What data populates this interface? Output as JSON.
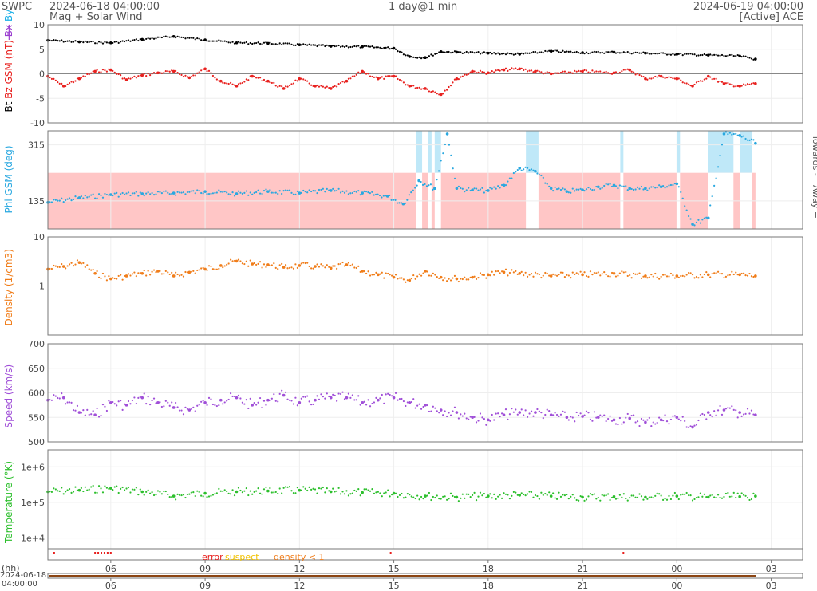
{
  "header": {
    "org": "SWPC",
    "start_time": "2024-06-18 04:00:00",
    "subtitle": "Mag + Solar Wind",
    "span": "1 day@1 min",
    "end_time": "2024-06-19 04:00:00",
    "source": "[Active] ACE"
  },
  "colors": {
    "bt": "#000000",
    "bz": "#e8201e",
    "bx": "#9b3fd0",
    "by": "#1ab0e8",
    "phi": "#29a8e0",
    "phi_away": "#ffc6c6",
    "phi_towards": "#bfe8f8",
    "density": "#f07d1a",
    "speed": "#a04fd8",
    "temperature": "#2cbf2c",
    "error": "#e8201e",
    "suspect": "#f2c200",
    "density_lt1": "#f07d1a"
  },
  "footer": {
    "hh_label": "(hh)",
    "date_line1": "2024-06-18",
    "date_line2": "04:00:00",
    "legend_error": "error",
    "legend_suspect": "suspect",
    "legend_density": "density < 1"
  },
  "chart_data": {
    "type": "line",
    "x_axis": {
      "unit": "hour (UTC)",
      "range_hours": [
        4,
        28
      ],
      "tick_labels": [
        "06",
        "09",
        "12",
        "15",
        "18",
        "21",
        "00",
        "03"
      ],
      "tick_hours": [
        6,
        9,
        12,
        15,
        18,
        21,
        24,
        27
      ],
      "data_end_hour": 26.5
    },
    "panels": [
      {
        "id": "mag",
        "ylabel_parts": [
          "Bt",
          "Bz GSM (nT)",
          "Bx",
          "By"
        ],
        "ylim": [
          -10,
          10
        ],
        "yticks": [
          -10,
          -5,
          0,
          5,
          10
        ],
        "series": [
          {
            "name": "Bt",
            "x": [
              4.0,
              5.0,
              6.0,
              7.0,
              8.0,
              9.0,
              10.0,
              11.0,
              12.0,
              13.0,
              14.0,
              15.0,
              15.5,
              16.0,
              16.5,
              17.0,
              18.0,
              19.0,
              20.0,
              21.0,
              22.0,
              23.0,
              24.0,
              25.0,
              26.0,
              26.5
            ],
            "y": [
              6.8,
              6.5,
              6.3,
              7.0,
              7.6,
              6.9,
              6.3,
              6.2,
              5.9,
              5.6,
              5.5,
              5.2,
              3.5,
              3.3,
              4.5,
              4.4,
              4.2,
              4.0,
              4.6,
              4.3,
              4.4,
              4.2,
              4.0,
              3.8,
              3.6,
              3.0
            ]
          },
          {
            "name": "Bz",
            "x": [
              4.0,
              4.5,
              5.0,
              5.5,
              6.0,
              6.5,
              7.0,
              7.5,
              8.0,
              8.5,
              9.0,
              9.5,
              10.0,
              10.5,
              11.0,
              11.5,
              12.0,
              12.5,
              13.0,
              13.5,
              14.0,
              14.5,
              15.0,
              15.5,
              16.0,
              16.5,
              17.0,
              17.5,
              18.0,
              18.5,
              19.0,
              19.5,
              20.0,
              21.0,
              22.0,
              22.5,
              23.0,
              23.5,
              24.0,
              24.5,
              25.0,
              25.5,
              26.0,
              26.5
            ],
            "y": [
              -0.5,
              -2.5,
              -1.0,
              0.5,
              0.8,
              -1.2,
              -0.3,
              0.2,
              0.5,
              -0.8,
              1.0,
              -1.5,
              -2.5,
              -0.5,
              -1.5,
              -3.0,
              -1.0,
              -2.5,
              -3.0,
              -1.5,
              0.5,
              -1.0,
              -0.5,
              -2.5,
              -3.0,
              -4.2,
              -1.0,
              0.5,
              0.2,
              0.8,
              1.0,
              0.5,
              0.0,
              0.5,
              0.2,
              0.8,
              -1.0,
              -0.5,
              -1.0,
              -2.5,
              -0.5,
              -2.0,
              -2.5,
              -2.0
            ]
          }
        ]
      },
      {
        "id": "phi",
        "ylabel": "Phi GSM (deg)",
        "right_labels": [
          "Towards -",
          "Away +"
        ],
        "ylim": [
          45,
          360
        ],
        "yticks": [
          135,
          315
        ],
        "series": [
          {
            "name": "Phi",
            "x": [
              4.0,
              5.0,
              6.0,
              7.0,
              8.0,
              9.0,
              10.0,
              11.0,
              12.0,
              13.0,
              14.0,
              14.8,
              15.3,
              15.8,
              16.3,
              16.7,
              17.0,
              17.5,
              18.0,
              18.5,
              19.0,
              19.5,
              20.0,
              20.5,
              21.0,
              21.5,
              22.0,
              22.5,
              23.0,
              23.5,
              24.0,
              24.5,
              25.0,
              25.5,
              26.0,
              26.5
            ],
            "y": [
              130,
              145,
              155,
              158,
              160,
              165,
              158,
              165,
              160,
              168,
              160,
              150,
              125,
              200,
              175,
              350,
              175,
              170,
              168,
              185,
              240,
              230,
              175,
              165,
              170,
              180,
              185,
              175,
              175,
              180,
              190,
              60,
              80,
              350,
              345,
              320
            ]
          }
        ],
        "towards_bands_hours": [
          [
            15.7,
            15.9
          ],
          [
            16.1,
            16.2
          ],
          [
            16.3,
            16.5
          ],
          [
            19.2,
            19.6
          ],
          [
            22.2,
            22.3
          ],
          [
            24.0,
            24.1
          ],
          [
            25.0,
            25.8
          ],
          [
            26.0,
            26.4
          ]
        ]
      },
      {
        "id": "density",
        "ylabel": "Density (1/cm3)",
        "scale": "log",
        "ylim": [
          0.1,
          10
        ],
        "ytick_labels": [
          "1",
          "10"
        ],
        "series": [
          {
            "name": "Density",
            "x": [
              4.0,
              4.5,
              5.0,
              5.5,
              6.0,
              6.5,
              7.0,
              7.5,
              8.0,
              8.5,
              9.0,
              9.5,
              10.0,
              10.5,
              11.0,
              11.5,
              12.0,
              12.5,
              13.0,
              13.5,
              14.0,
              14.5,
              15.0,
              15.5,
              16.0,
              16.5,
              17.0,
              17.5,
              18.0,
              18.5,
              19.0,
              20.0,
              21.0,
              22.0,
              23.0,
              24.0,
              25.0,
              26.0,
              26.5
            ],
            "y": [
              2.2,
              2.5,
              3.0,
              1.8,
              1.4,
              1.6,
              1.8,
              2.0,
              1.6,
              1.9,
              2.2,
              2.6,
              3.2,
              2.8,
              2.7,
              2.4,
              2.6,
              2.5,
              2.3,
              2.7,
              2.0,
              1.7,
              1.5,
              1.3,
              2.0,
              1.5,
              1.4,
              1.5,
              1.7,
              1.9,
              1.8,
              1.6,
              1.7,
              1.8,
              1.6,
              1.6,
              1.7,
              1.7,
              1.6
            ]
          }
        ]
      },
      {
        "id": "speed",
        "ylabel": "Speed (km/s)",
        "ylim": [
          500,
          700
        ],
        "yticks": [
          500,
          550,
          600,
          650,
          700
        ],
        "series": [
          {
            "name": "Speed",
            "x": [
              4.0,
              4.5,
              5.0,
              5.5,
              6.0,
              6.5,
              7.0,
              7.5,
              8.0,
              8.5,
              9.0,
              9.5,
              10.0,
              10.5,
              11.0,
              11.5,
              12.0,
              12.5,
              13.0,
              13.5,
              14.0,
              14.5,
              15.0,
              15.5,
              16.0,
              16.5,
              17.0,
              17.5,
              18.0,
              18.5,
              19.0,
              19.5,
              20.0,
              20.5,
              21.0,
              21.5,
              22.0,
              22.5,
              23.0,
              23.5,
              24.0,
              24.5,
              25.0,
              25.5,
              26.0,
              26.5
            ],
            "y": [
              585,
              590,
              560,
              555,
              580,
              575,
              590,
              580,
              570,
              565,
              580,
              585,
              590,
              575,
              585,
              595,
              580,
              585,
              590,
              590,
              580,
              585,
              590,
              580,
              575,
              565,
              560,
              550,
              545,
              555,
              560,
              560,
              555,
              550,
              552,
              550,
              545,
              548,
              540,
              545,
              550,
              530,
              560,
              565,
              560,
              555
            ]
          }
        ]
      },
      {
        "id": "temperature",
        "ylabel": "Temperature (°K)",
        "scale": "log",
        "ylim": [
          5000,
          3000000
        ],
        "ytick_labels": [
          "1e+4",
          "1e+5",
          "1e+6"
        ],
        "series": [
          {
            "name": "Temperature",
            "x": [
              4.0,
              5.0,
              6.0,
              7.0,
              8.0,
              9.0,
              10.0,
              11.0,
              12.0,
              13.0,
              14.0,
              15.0,
              16.0,
              17.0,
              18.0,
              19.0,
              20.0,
              21.0,
              22.0,
              23.0,
              24.0,
              25.0,
              26.0,
              26.5
            ],
            "y": [
              200000,
              220000,
              250000,
              200000,
              150000,
              180000,
              200000,
              210000,
              220000,
              200000,
              190000,
              180000,
              150000,
              140000,
              150000,
              160000,
              150000,
              140000,
              145000,
              140000,
              150000,
              140000,
              145000,
              150000
            ]
          }
        ]
      }
    ]
  }
}
